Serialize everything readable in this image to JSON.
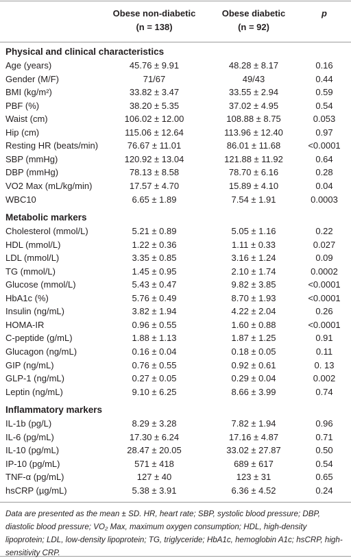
{
  "header": {
    "columns": [
      {
        "name": "Obese non-diabetic",
        "n": "(n = 138)"
      },
      {
        "name": "Obese diabetic",
        "n": "(n = 92)"
      },
      {
        "name": "p"
      }
    ]
  },
  "sections": [
    {
      "title": "Physical and clinical characteristics",
      "rows": [
        [
          "Age (years)",
          "45.76 ± 9.91",
          "48.28 ± 8.17",
          "0.16"
        ],
        [
          "Gender (M/F)",
          "71/67",
          "49/43",
          "0.44"
        ],
        [
          "BMI (kg/m²)",
          "33.82 ± 3.47",
          "33.55 ± 2.94",
          "0.59"
        ],
        [
          "PBF (%)",
          "38.20 ± 5.35",
          "37.02 ± 4.95",
          "0.54"
        ],
        [
          "Waist (cm)",
          "106.02 ± 12.00",
          "108.88 ± 8.75",
          "0.053"
        ],
        [
          "Hip (cm)",
          "115.06 ± 12.64",
          "113.96 ± 12.40",
          "0.97"
        ],
        [
          "Resting HR (beats/min)",
          "76.67 ± 11.01",
          "86.01 ± 11.68",
          "<0.0001"
        ],
        [
          "SBP (mmHg)",
          "120.92 ± 13.04",
          "121.88 ± 11.92",
          "0.64"
        ],
        [
          "DBP (mmHg)",
          "78.13 ± 8.58",
          "78.70 ± 6.16",
          "0.28"
        ],
        [
          "VO2 Max (mL/kg/min)",
          "17.57 ± 4.70",
          "15.89 ± 4.10",
          "0.04"
        ],
        [
          "WBC10",
          "6.65 ± 1.89",
          "7.54 ± 1.91",
          "0.0003"
        ]
      ]
    },
    {
      "title": "Metabolic markers",
      "rows": [
        [
          "Cholesterol (mmol/L)",
          "5.21 ± 0.89",
          "5.05 ± 1.16",
          "0.22"
        ],
        [
          "HDL (mmol/L)",
          "1.22 ± 0.36",
          "1.11 ± 0.33",
          "0.027"
        ],
        [
          "LDL (mmol/L)",
          "3.35 ± 0.85",
          "3.16 ± 1.24",
          "0.09"
        ],
        [
          "TG (mmol/L)",
          "1.45 ± 0.95",
          "2.10 ± 1.74",
          "0.0002"
        ],
        [
          "Glucose (mmol/L)",
          "5.43 ± 0.47",
          "9.82 ± 3.85",
          "<0.0001"
        ],
        [
          "HbA1c (%)",
          "5.76 ± 0.49",
          "8.70 ± 1.93",
          "<0.0001"
        ],
        [
          "Insulin (ng/mL)",
          "3.82 ± 1.94",
          "4.22 ± 2.04",
          "0.26"
        ],
        [
          "HOMA-IR",
          "0.96 ± 0.55",
          "1.60 ± 0.88",
          "<0.0001"
        ],
        [
          "C-peptide (g/mL)",
          "1.88 ± 1.13",
          "1.87 ± 1.25",
          "0.91"
        ],
        [
          "Glucagon (ng/mL)",
          "0.16 ± 0.04",
          "0.18 ± 0.05",
          "0.11"
        ],
        [
          "GIP (ng/mL)",
          "0.76 ± 0.55",
          "0.92 ± 0.61",
          "0. 13"
        ],
        [
          "GLP-1 (ng/mL)",
          "0.27 ± 0.05",
          "0.29 ± 0.04",
          "0.002"
        ],
        [
          "Leptin (ng/mL)",
          "9.10 ± 6.25",
          "8.66 ± 3.99",
          "0.74"
        ]
      ]
    },
    {
      "title": "Inflammatory markers",
      "rows": [
        [
          "IL-1b (pg/L)",
          "8.29 ± 3.28",
          "7.82 ± 1.94",
          "0.96"
        ],
        [
          "IL-6 (pg/mL)",
          "17.30 ± 6.24",
          "17.16 ± 4.87",
          "0.71"
        ],
        [
          "IL-10 (pg/mL)",
          "28.47 ± 20.05",
          "33.02 ± 27.87",
          "0.50"
        ],
        [
          "IP-10 (pg/mL)",
          "571 ± 418",
          "689 ± 617",
          "0.54"
        ],
        [
          "TNF-α (pg/mL)",
          "127 ± 40",
          "123 ± 31",
          "0.65"
        ],
        [
          "hsCRP (µg/mL)",
          "5.38 ± 3.91",
          "6.36 ± 4.52",
          "0.24"
        ]
      ]
    }
  ],
  "footnote": "Data are presented as the mean ± SD. HR, heart rate; SBP, systolic blood pressure; DBP, diastolic blood pressure; VO₂ Max, maximum oxygen consumption; HDL, high-density lipoprotein; LDL, low-density lipoprotein; TG, triglyceride; HbA1c, hemoglobin A1c; hsCRP, high-sensitivity CRP."
}
